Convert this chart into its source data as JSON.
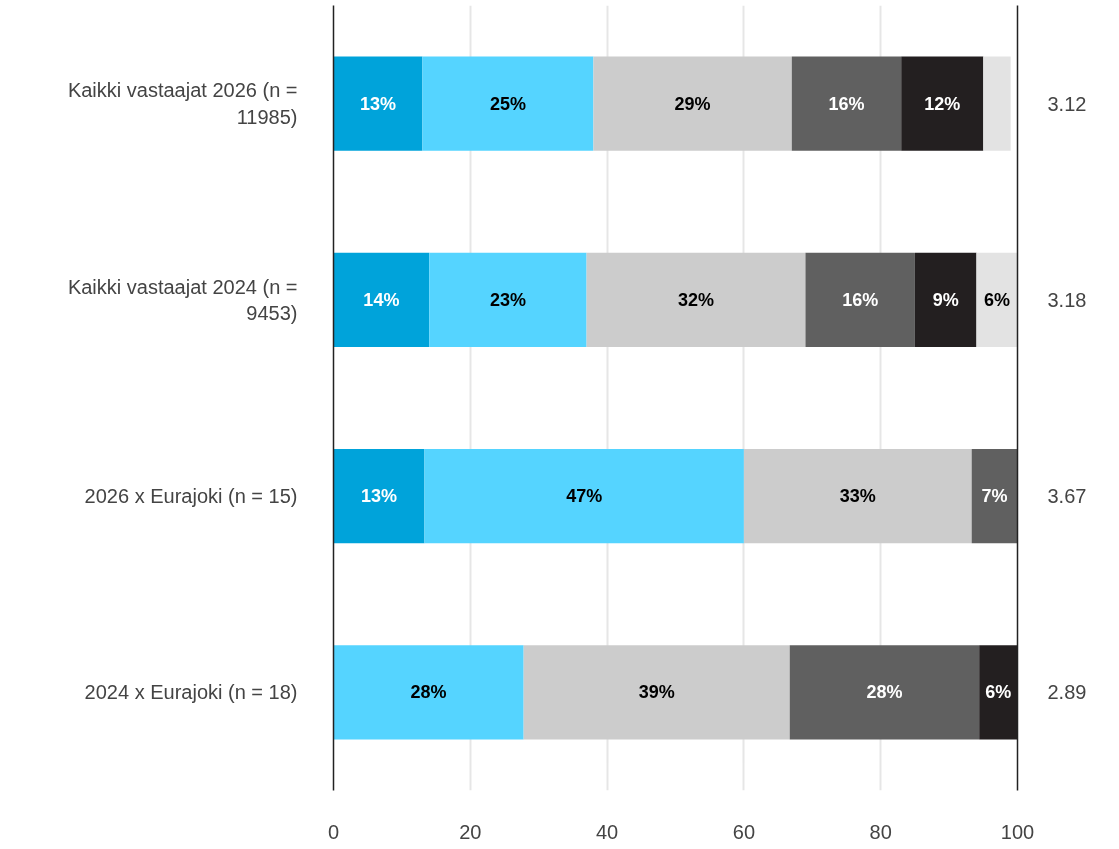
{
  "chart_data": {
    "type": "bar",
    "orientation": "horizontal",
    "stacked": true,
    "categories": [
      "Kaikki vastaajat 2026 (n = 11985)",
      "Kaikki vastaajat 2024 (n = 9453)",
      "2026 x Eurajoki (n = 15)",
      "2024 x Eurajoki (n = 18)"
    ],
    "series": [
      {
        "color": "#00a3da",
        "values": [
          13,
          14,
          13.3,
          0
        ],
        "value_labels": [
          "13%",
          "14%",
          "13%",
          null
        ]
      },
      {
        "color": "#55d4ff",
        "values": [
          25,
          23,
          46.7,
          27.8
        ],
        "value_labels": [
          "25%",
          "23%",
          "47%",
          "28%"
        ]
      },
      {
        "color": "#cccccc",
        "values": [
          29,
          32,
          33.3,
          38.9
        ],
        "value_labels": [
          "29%",
          "32%",
          "33%",
          "39%"
        ]
      },
      {
        "color": "#606060",
        "values": [
          16,
          16,
          6.7,
          27.7
        ],
        "value_labels": [
          "16%",
          "16%",
          "7%",
          "28%"
        ]
      },
      {
        "color": "#231f20",
        "values": [
          12,
          9,
          0,
          5.6
        ],
        "value_labels": [
          "12%",
          "9%",
          null,
          "6%"
        ]
      },
      {
        "color": "#e3e3e3",
        "values": [
          4,
          6,
          0,
          0
        ],
        "value_labels": [
          null,
          "6%",
          null,
          null
        ]
      }
    ],
    "annotations": [
      "3.12",
      "3.18",
      "3.67",
      "2.89"
    ],
    "xlim": [
      0,
      100
    ],
    "xticks": [
      0,
      20,
      40,
      60,
      80,
      100
    ],
    "grid": "x"
  }
}
